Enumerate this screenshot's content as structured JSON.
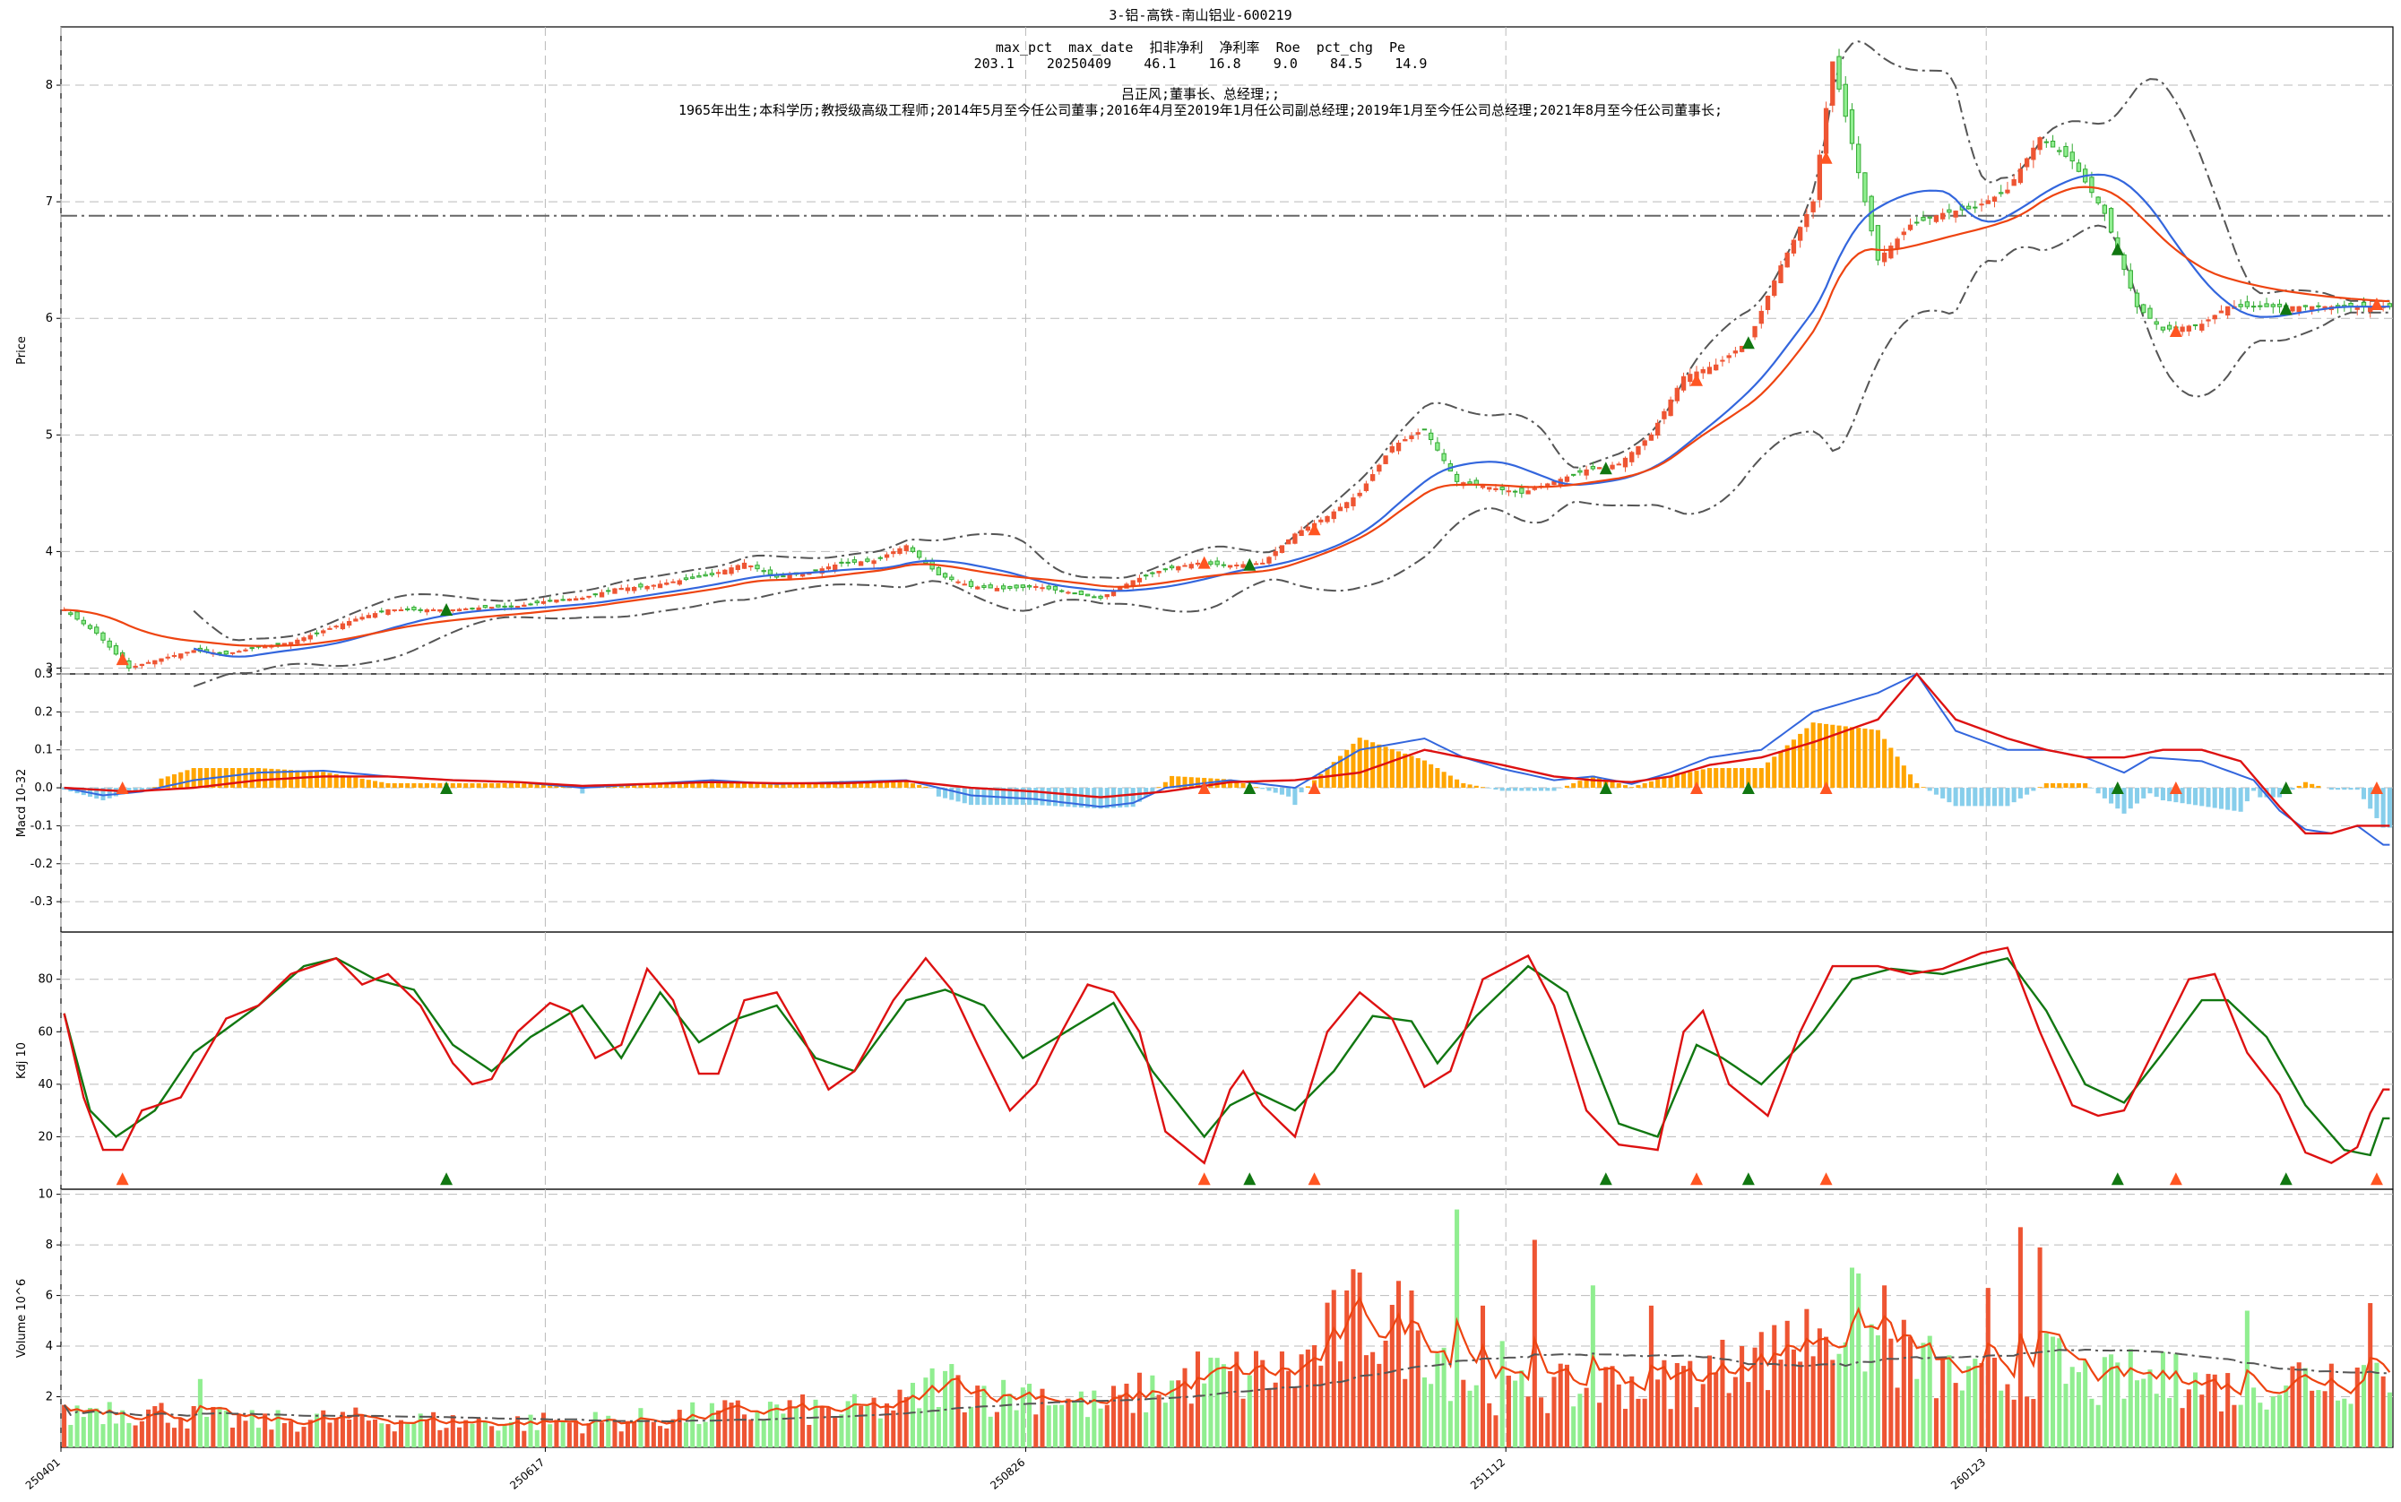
{
  "chart_data": {
    "type": "candlestick",
    "title": "3-铝-高铁-南山铝业-600219",
    "stats": {
      "header": "max_pct  max_date  扣非净利  净利率  Roe  pct_chg  Pe",
      "values": "203.1    20250409    46.1    16.8    9.0    84.5    14.9"
    },
    "manager": {
      "name_role": "吕正风;董事长、总经理;;",
      "bio": "1965年出生;本科学历;教授级高级工程师;2014年5月至今任公司董事;2016年4月至2019年1月任公司副总经理;2019年1月至今任公司总经理;2021年8月至今任公司董事长;"
    },
    "x_ticks": [
      "250401",
      "250617",
      "250826",
      "251112",
      "260123"
    ],
    "colors": {
      "up": "#ee5533",
      "down": "#33aa33",
      "down_fill": "#90ee90",
      "ma_short": "#3366dd",
      "ma_long": "#ee4411",
      "band": "#555555",
      "macd_pos": "#ffa500",
      "macd_neg": "#87ceeb",
      "dif": "#3366dd",
      "dea": "#dd1111",
      "k": "#dd1111",
      "d": "#117711",
      "vol_ma": "#ee4411",
      "signal_up": "#ff5522",
      "signal_down": "#117711"
    },
    "panels": [
      {
        "id": "price",
        "ylabel": "Price",
        "ylim": [
          2.95,
          8.5
        ],
        "ticks": [
          3,
          4,
          5,
          6,
          7,
          8
        ],
        "hline": 6.88
      },
      {
        "id": "macd",
        "ylabel": "Macd 10-32",
        "ylim": [
          -0.38,
          0.3
        ],
        "ticks": [
          -0.3,
          -0.2,
          -0.1,
          0.0,
          0.1,
          0.2,
          0.3
        ]
      },
      {
        "id": "kdj",
        "ylabel": "Kdj 10",
        "ylim": [
          0,
          98
        ],
        "ticks": [
          20,
          40,
          60,
          80
        ]
      },
      {
        "id": "volume",
        "ylabel": "Volume  10^6",
        "ylim": [
          0,
          10.2
        ],
        "ticks": [
          2,
          4,
          6,
          8,
          10
        ]
      }
    ],
    "close_anchors": [
      [
        0,
        3.5
      ],
      [
        5,
        3.3
      ],
      [
        10,
        3.0
      ],
      [
        15,
        3.08
      ],
      [
        20,
        3.15
      ],
      [
        25,
        3.12
      ],
      [
        30,
        3.18
      ],
      [
        35,
        3.22
      ],
      [
        40,
        3.32
      ],
      [
        45,
        3.42
      ],
      [
        50,
        3.5
      ],
      [
        55,
        3.5
      ],
      [
        60,
        3.5
      ],
      [
        65,
        3.52
      ],
      [
        70,
        3.53
      ],
      [
        75,
        3.58
      ],
      [
        80,
        3.6
      ],
      [
        85,
        3.68
      ],
      [
        90,
        3.7
      ],
      [
        95,
        3.75
      ],
      [
        100,
        3.8
      ],
      [
        105,
        3.9
      ],
      [
        110,
        3.78
      ],
      [
        115,
        3.82
      ],
      [
        120,
        3.9
      ],
      [
        125,
        3.92
      ],
      [
        130,
        4.05
      ],
      [
        135,
        3.8
      ],
      [
        140,
        3.7
      ],
      [
        145,
        3.68
      ],
      [
        150,
        3.7
      ],
      [
        155,
        3.65
      ],
      [
        160,
        3.6
      ],
      [
        165,
        3.75
      ],
      [
        170,
        3.85
      ],
      [
        175,
        3.9
      ],
      [
        180,
        3.88
      ],
      [
        185,
        3.9
      ],
      [
        190,
        4.15
      ],
      [
        195,
        4.3
      ],
      [
        200,
        4.5
      ],
      [
        205,
        4.9
      ],
      [
        210,
        5.05
      ],
      [
        215,
        4.6
      ],
      [
        220,
        4.55
      ],
      [
        225,
        4.5
      ],
      [
        230,
        4.6
      ],
      [
        235,
        4.7
      ],
      [
        240,
        4.75
      ],
      [
        245,
        5.0
      ],
      [
        250,
        5.5
      ],
      [
        255,
        5.6
      ],
      [
        260,
        5.8
      ],
      [
        265,
        6.45
      ],
      [
        270,
        7.0
      ],
      [
        273,
        8.2
      ],
      [
        276,
        7.5
      ],
      [
        280,
        6.5
      ],
      [
        285,
        6.8
      ],
      [
        290,
        6.9
      ],
      [
        295,
        6.95
      ],
      [
        300,
        7.1
      ],
      [
        305,
        7.55
      ],
      [
        310,
        7.35
      ],
      [
        315,
        6.9
      ],
      [
        320,
        6.1
      ],
      [
        324,
        5.9
      ],
      [
        330,
        5.95
      ],
      [
        334,
        6.1
      ]
    ],
    "kdj_k_anchors": [
      [
        0,
        67
      ],
      [
        3,
        35
      ],
      [
        6,
        15
      ],
      [
        9,
        15
      ],
      [
        12,
        30
      ],
      [
        18,
        35
      ],
      [
        25,
        65
      ],
      [
        30,
        70
      ],
      [
        35,
        82
      ],
      [
        42,
        88
      ],
      [
        46,
        78
      ],
      [
        50,
        82
      ],
      [
        55,
        70
      ],
      [
        60,
        48
      ],
      [
        63,
        40
      ],
      [
        66,
        42
      ],
      [
        70,
        60
      ],
      [
        75,
        71
      ],
      [
        78,
        68
      ],
      [
        82,
        50
      ],
      [
        86,
        55
      ],
      [
        90,
        84
      ],
      [
        94,
        72
      ],
      [
        98,
        44
      ],
      [
        101,
        44
      ],
      [
        105,
        72
      ],
      [
        110,
        75
      ],
      [
        114,
        58
      ],
      [
        118,
        38
      ],
      [
        122,
        45
      ],
      [
        128,
        72
      ],
      [
        133,
        88
      ],
      [
        137,
        76
      ],
      [
        141,
        55
      ],
      [
        146,
        30
      ],
      [
        150,
        40
      ],
      [
        154,
        60
      ],
      [
        158,
        78
      ],
      [
        162,
        75
      ],
      [
        166,
        60
      ],
      [
        170,
        22
      ],
      [
        176,
        10
      ],
      [
        180,
        38
      ],
      [
        182,
        45
      ],
      [
        185,
        32
      ],
      [
        190,
        20
      ],
      [
        195,
        60
      ],
      [
        200,
        75
      ],
      [
        205,
        65
      ],
      [
        210,
        39
      ],
      [
        214,
        45
      ],
      [
        219,
        80
      ],
      [
        226,
        89
      ],
      [
        230,
        70
      ],
      [
        235,
        30
      ],
      [
        240,
        17
      ],
      [
        246,
        15
      ],
      [
        250,
        60
      ],
      [
        253,
        68
      ],
      [
        257,
        40
      ],
      [
        263,
        28
      ],
      [
        268,
        60
      ],
      [
        273,
        85
      ],
      [
        280,
        85
      ],
      [
        285,
        82
      ],
      [
        290,
        84
      ],
      [
        296,
        90
      ],
      [
        300,
        92
      ],
      [
        305,
        60
      ],
      [
        310,
        32
      ],
      [
        314,
        28
      ],
      [
        318,
        30
      ],
      [
        322,
        50
      ],
      [
        328,
        80
      ],
      [
        332,
        82
      ],
      [
        337,
        52
      ],
      [
        342,
        36
      ],
      [
        346,
        14
      ],
      [
        350,
        10
      ],
      [
        354,
        16
      ],
      [
        356,
        29
      ],
      [
        358,
        38
      ]
    ],
    "kdj_d_anchors": [
      [
        0,
        67
      ],
      [
        4,
        30
      ],
      [
        8,
        20
      ],
      [
        14,
        30
      ],
      [
        20,
        52
      ],
      [
        30,
        70
      ],
      [
        37,
        85
      ],
      [
        42,
        88
      ],
      [
        48,
        80
      ],
      [
        54,
        76
      ],
      [
        60,
        55
      ],
      [
        66,
        45
      ],
      [
        72,
        58
      ],
      [
        80,
        70
      ],
      [
        86,
        50
      ],
      [
        92,
        75
      ],
      [
        98,
        56
      ],
      [
        104,
        65
      ],
      [
        110,
        70
      ],
      [
        116,
        50
      ],
      [
        122,
        45
      ],
      [
        130,
        72
      ],
      [
        136,
        76
      ],
      [
        142,
        70
      ],
      [
        148,
        50
      ],
      [
        156,
        62
      ],
      [
        162,
        71
      ],
      [
        168,
        45
      ],
      [
        176,
        20
      ],
      [
        180,
        32
      ],
      [
        184,
        37
      ],
      [
        190,
        30
      ],
      [
        196,
        45
      ],
      [
        202,
        66
      ],
      [
        208,
        64
      ],
      [
        212,
        48
      ],
      [
        218,
        66
      ],
      [
        226,
        85
      ],
      [
        232,
        75
      ],
      [
        240,
        25
      ],
      [
        246,
        20
      ],
      [
        252,
        55
      ],
      [
        256,
        50
      ],
      [
        262,
        40
      ],
      [
        270,
        60
      ],
      [
        276,
        80
      ],
      [
        282,
        84
      ],
      [
        290,
        82
      ],
      [
        300,
        88
      ],
      [
        306,
        68
      ],
      [
        312,
        40
      ],
      [
        318,
        33
      ],
      [
        324,
        52
      ],
      [
        330,
        72
      ],
      [
        334,
        72
      ],
      [
        340,
        58
      ],
      [
        346,
        32
      ],
      [
        352,
        15
      ],
      [
        356,
        13
      ],
      [
        358,
        27
      ]
    ],
    "dif_anchors": [
      [
        0,
        0.0
      ],
      [
        6,
        -0.02
      ],
      [
        12,
        -0.01
      ],
      [
        20,
        0.02
      ],
      [
        30,
        0.04
      ],
      [
        40,
        0.045
      ],
      [
        50,
        0.03
      ],
      [
        60,
        0.02
      ],
      [
        70,
        0.015
      ],
      [
        80,
        0.0
      ],
      [
        90,
        0.01
      ],
      [
        100,
        0.02
      ],
      [
        110,
        0.01
      ],
      [
        120,
        0.015
      ],
      [
        130,
        0.02
      ],
      [
        140,
        -0.02
      ],
      [
        150,
        -0.03
      ],
      [
        160,
        -0.05
      ],
      [
        165,
        -0.04
      ],
      [
        170,
        0.0
      ],
      [
        180,
        0.02
      ],
      [
        190,
        0.0
      ],
      [
        200,
        0.1
      ],
      [
        210,
        0.13
      ],
      [
        216,
        0.08
      ],
      [
        222,
        0.05
      ],
      [
        230,
        0.02
      ],
      [
        236,
        0.03
      ],
      [
        242,
        0.01
      ],
      [
        248,
        0.04
      ],
      [
        254,
        0.08
      ],
      [
        262,
        0.1
      ],
      [
        270,
        0.2
      ],
      [
        280,
        0.25
      ],
      [
        286,
        0.3
      ],
      [
        292,
        0.15
      ],
      [
        300,
        0.1
      ],
      [
        306,
        0.1
      ],
      [
        312,
        0.08
      ],
      [
        318,
        0.04
      ],
      [
        322,
        0.08
      ],
      [
        330,
        0.07
      ],
      [
        338,
        0.02
      ],
      [
        342,
        -0.06
      ],
      [
        346,
        -0.11
      ],
      [
        350,
        -0.12
      ],
      [
        354,
        -0.1
      ],
      [
        358,
        -0.15
      ]
    ],
    "dea_anchors": [
      [
        0,
        0.0
      ],
      [
        10,
        -0.01
      ],
      [
        20,
        0.0
      ],
      [
        30,
        0.02
      ],
      [
        40,
        0.03
      ],
      [
        50,
        0.03
      ],
      [
        60,
        0.02
      ],
      [
        70,
        0.015
      ],
      [
        80,
        0.005
      ],
      [
        90,
        0.01
      ],
      [
        100,
        0.015
      ],
      [
        110,
        0.012
      ],
      [
        120,
        0.012
      ],
      [
        130,
        0.018
      ],
      [
        140,
        0.0
      ],
      [
        150,
        -0.01
      ],
      [
        160,
        -0.025
      ],
      [
        170,
        -0.01
      ],
      [
        180,
        0.015
      ],
      [
        190,
        0.02
      ],
      [
        200,
        0.04
      ],
      [
        210,
        0.1
      ],
      [
        216,
        0.08
      ],
      [
        222,
        0.06
      ],
      [
        230,
        0.03
      ],
      [
        236,
        0.02
      ],
      [
        242,
        0.015
      ],
      [
        248,
        0.03
      ],
      [
        254,
        0.06
      ],
      [
        262,
        0.08
      ],
      [
        270,
        0.12
      ],
      [
        280,
        0.18
      ],
      [
        286,
        0.3
      ],
      [
        292,
        0.18
      ],
      [
        300,
        0.13
      ],
      [
        306,
        0.1
      ],
      [
        312,
        0.08
      ],
      [
        318,
        0.08
      ],
      [
        324,
        0.1
      ],
      [
        330,
        0.1
      ],
      [
        336,
        0.07
      ],
      [
        342,
        -0.05
      ],
      [
        346,
        -0.12
      ],
      [
        350,
        -0.12
      ],
      [
        354,
        -0.1
      ],
      [
        358,
        -0.1
      ]
    ],
    "volume_anchors": [
      [
        0,
        1.2
      ],
      [
        5,
        1.6
      ],
      [
        10,
        1.5
      ],
      [
        20,
        1.2
      ],
      [
        30,
        1.0
      ],
      [
        40,
        1.1
      ],
      [
        50,
        1.1
      ],
      [
        60,
        1.0
      ],
      [
        70,
        1.0
      ],
      [
        80,
        1.0
      ],
      [
        90,
        1.1
      ],
      [
        100,
        1.3
      ],
      [
        110,
        1.5
      ],
      [
        120,
        1.4
      ],
      [
        130,
        1.7
      ],
      [
        135,
        2.6
      ],
      [
        140,
        2.4
      ],
      [
        145,
        2.0
      ],
      [
        150,
        2.3
      ],
      [
        155,
        1.8
      ],
      [
        160,
        1.6
      ],
      [
        165,
        2.0
      ],
      [
        170,
        2.4
      ],
      [
        175,
        2.8
      ],
      [
        180,
        2.8
      ],
      [
        185,
        2.9
      ],
      [
        190,
        3.0
      ],
      [
        195,
        4.2
      ],
      [
        200,
        5.2
      ],
      [
        205,
        4.8
      ],
      [
        210,
        4.6
      ],
      [
        215,
        3.0
      ],
      [
        220,
        2.3
      ],
      [
        225,
        2.2
      ],
      [
        230,
        2.3
      ],
      [
        235,
        2.2
      ],
      [
        240,
        2.7
      ],
      [
        245,
        2.4
      ],
      [
        250,
        2.8
      ],
      [
        255,
        3.0
      ],
      [
        260,
        3.5
      ],
      [
        265,
        3.6
      ],
      [
        270,
        4.5
      ],
      [
        275,
        5.2
      ],
      [
        280,
        4.2
      ],
      [
        285,
        3.5
      ],
      [
        290,
        2.9
      ],
      [
        295,
        2.5
      ],
      [
        300,
        2.7
      ],
      [
        305,
        3.6
      ],
      [
        310,
        2.8
      ],
      [
        315,
        2.5
      ],
      [
        320,
        2.8
      ],
      [
        325,
        2.6
      ],
      [
        330,
        2.5
      ],
      [
        335,
        2.3
      ],
      [
        340,
        2.6
      ],
      [
        345,
        2.8
      ],
      [
        350,
        2.9
      ],
      [
        355,
        3.0
      ],
      [
        358,
        3.0
      ]
    ],
    "volume_spikes": [
      [
        21,
        2.7
      ],
      [
        215,
        9.4
      ],
      [
        219,
        5.6
      ],
      [
        222,
        4.2
      ],
      [
        227,
        8.2
      ],
      [
        236,
        6.4
      ],
      [
        245,
        5.6
      ],
      [
        259,
        4.0
      ],
      [
        266,
        5.0
      ],
      [
        271,
        4.7
      ],
      [
        281,
        6.4
      ],
      [
        297,
        6.3
      ],
      [
        302,
        8.7
      ],
      [
        305,
        7.9
      ],
      [
        326,
        3.7
      ],
      [
        337,
        5.4
      ],
      [
        356,
        5.7
      ]
    ],
    "signals_up": [
      9,
      176,
      193,
      252,
      272,
      326,
      357
    ],
    "signals_down": [
      59,
      183,
      238,
      260,
      317,
      343
    ]
  }
}
